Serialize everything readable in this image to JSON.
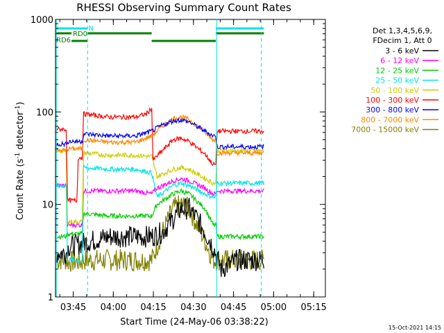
{
  "chart_data": {
    "type": "line",
    "title": "RHESSI Observing Summary Count Rates",
    "xlabel": "Start Time (24-May-06 03:38:22)",
    "ylabel_main": "Count Rate (s",
    "ylabel_sup1": "-1",
    "ylabel_mid": " detector",
    "ylabel_sup2": "-1",
    "ylabel_end": ")",
    "yscale": "log",
    "ylim": [
      1,
      1000
    ],
    "x_ticks": [
      "03:45",
      "04:00",
      "04:15",
      "04:30",
      "04:45",
      "05:00",
      "05:15"
    ],
    "y_ticks": [
      "1",
      "10",
      "100",
      "1000"
    ],
    "legend_header": [
      "Det 1,3,4,5,6,9,",
      "FDecim 1, Att 0"
    ],
    "footer_date": "15-Oct-2021 14:15",
    "flags": {
      "n_label": "N",
      "rd0_label": "RD0",
      "rd6_label": "RD6",
      "n_color": "#00e5e5",
      "rd_color": "#008000"
    },
    "series": [
      {
        "name": "3 - 6 keV",
        "color": "#000000",
        "points": [
          [
            0,
            3
          ],
          [
            4,
            3
          ],
          [
            5,
            3.5
          ],
          [
            20,
            4.5
          ],
          [
            36,
            4.5
          ],
          [
            40,
            5
          ],
          [
            44,
            7
          ],
          [
            47,
            9
          ],
          [
            50,
            9
          ],
          [
            53,
            7
          ],
          [
            56,
            5
          ],
          [
            59,
            3.5
          ],
          [
            62,
            2
          ],
          [
            68,
            2.5
          ],
          [
            78,
            2.5
          ]
        ]
      },
      {
        "name": "6 - 12 keV",
        "color": "#ff00ff",
        "points": [
          [
            0,
            16
          ],
          [
            4,
            16
          ],
          [
            4.5,
            6
          ],
          [
            10,
            6
          ],
          [
            10.5,
            14
          ],
          [
            20,
            14
          ],
          [
            30,
            14
          ],
          [
            36,
            13
          ],
          [
            38,
            15
          ],
          [
            44,
            18
          ],
          [
            47,
            19
          ],
          [
            50,
            18
          ],
          [
            56,
            15
          ],
          [
            59,
            13
          ],
          [
            60,
            13
          ],
          [
            60.5,
            14
          ],
          [
            78,
            14
          ]
        ]
      },
      {
        "name": "12 - 25 keV",
        "color": "#00cc00",
        "points": [
          [
            0,
            4.5
          ],
          [
            4,
            4.5
          ],
          [
            4.5,
            4.8
          ],
          [
            10,
            4.8
          ],
          [
            10.5,
            8
          ],
          [
            20,
            7.5
          ],
          [
            30,
            7.5
          ],
          [
            36,
            7.5
          ],
          [
            38,
            10
          ],
          [
            44,
            13
          ],
          [
            47,
            14
          ],
          [
            50,
            13
          ],
          [
            56,
            9
          ],
          [
            59,
            6
          ],
          [
            60,
            6
          ],
          [
            60.5,
            4.5
          ],
          [
            78,
            4.5
          ]
        ]
      },
      {
        "name": "25 - 50 keV",
        "color": "#00e5e5",
        "points": [
          [
            0,
            16
          ],
          [
            4,
            16
          ],
          [
            4.5,
            2.5
          ],
          [
            10,
            2.5
          ],
          [
            10.5,
            25
          ],
          [
            20,
            24
          ],
          [
            30,
            24
          ],
          [
            36,
            22
          ],
          [
            38,
            12
          ],
          [
            44,
            16
          ],
          [
            47,
            17
          ],
          [
            50,
            16
          ],
          [
            56,
            13
          ],
          [
            59,
            12
          ],
          [
            60,
            12
          ],
          [
            60.5,
            17
          ],
          [
            78,
            17
          ]
        ]
      },
      {
        "name": "50 - 100 keV",
        "color": "#cccc00",
        "points": [
          [
            0,
            38
          ],
          [
            4,
            38
          ],
          [
            4.5,
            6.5
          ],
          [
            10,
            6.5
          ],
          [
            10.5,
            36
          ],
          [
            20,
            34
          ],
          [
            30,
            34
          ],
          [
            36,
            33
          ],
          [
            38,
            20
          ],
          [
            44,
            24
          ],
          [
            47,
            25
          ],
          [
            50,
            24
          ],
          [
            56,
            19
          ],
          [
            59,
            17
          ],
          [
            60,
            17
          ],
          [
            60.5,
            38
          ],
          [
            78,
            38
          ]
        ]
      },
      {
        "name": "100 - 300 keV",
        "color": "#ff0000",
        "points": [
          [
            0,
            65
          ],
          [
            4,
            65
          ],
          [
            4.5,
            11
          ],
          [
            8,
            11
          ],
          [
            8.5,
            32
          ],
          [
            10,
            32
          ],
          [
            10.5,
            95
          ],
          [
            20,
            88
          ],
          [
            30,
            88
          ],
          [
            34,
            95
          ],
          [
            36,
            110
          ],
          [
            36.5,
            30
          ],
          [
            44,
            50
          ],
          [
            47,
            52
          ],
          [
            50,
            48
          ],
          [
            56,
            35
          ],
          [
            59,
            27
          ],
          [
            60,
            27
          ],
          [
            60.5,
            62
          ],
          [
            78,
            62
          ]
        ]
      },
      {
        "name": "300 - 800 keV",
        "color": "#0000ff",
        "points": [
          [
            0,
            45
          ],
          [
            4,
            45
          ],
          [
            4.5,
            48
          ],
          [
            10,
            48
          ],
          [
            10.5,
            58
          ],
          [
            20,
            55
          ],
          [
            30,
            55
          ],
          [
            36,
            62
          ],
          [
            40,
            72
          ],
          [
            44,
            80
          ],
          [
            47,
            82
          ],
          [
            50,
            78
          ],
          [
            56,
            62
          ],
          [
            59,
            55
          ],
          [
            60,
            55
          ],
          [
            60.5,
            42
          ],
          [
            78,
            42
          ]
        ]
      },
      {
        "name": "800 - 7000 keV",
        "color": "#ff8800",
        "points": [
          [
            0,
            38
          ],
          [
            4,
            38
          ],
          [
            4.5,
            40
          ],
          [
            10,
            40
          ],
          [
            10.5,
            50
          ],
          [
            20,
            47
          ],
          [
            30,
            47
          ],
          [
            36,
            55
          ],
          [
            40,
            70
          ],
          [
            44,
            85
          ],
          [
            47,
            88
          ],
          [
            50,
            83
          ],
          [
            56,
            60
          ],
          [
            59,
            50
          ],
          [
            60,
            50
          ],
          [
            60.5,
            36
          ],
          [
            78,
            36
          ]
        ]
      },
      {
        "name": "7000 - 15000 keV",
        "color": "#808000",
        "points": [
          [
            0,
            2.5
          ],
          [
            4,
            2.5
          ],
          [
            4.5,
            2.4
          ],
          [
            10,
            2.4
          ],
          [
            10.5,
            2.5
          ],
          [
            20,
            2.5
          ],
          [
            36,
            2.5
          ],
          [
            40,
            5
          ],
          [
            44,
            9
          ],
          [
            47,
            10
          ],
          [
            50,
            9
          ],
          [
            53,
            6
          ],
          [
            56,
            4
          ],
          [
            59,
            2.5
          ],
          [
            60,
            2.5
          ],
          [
            60.5,
            2.5
          ],
          [
            78,
            2.5
          ]
        ]
      }
    ]
  }
}
